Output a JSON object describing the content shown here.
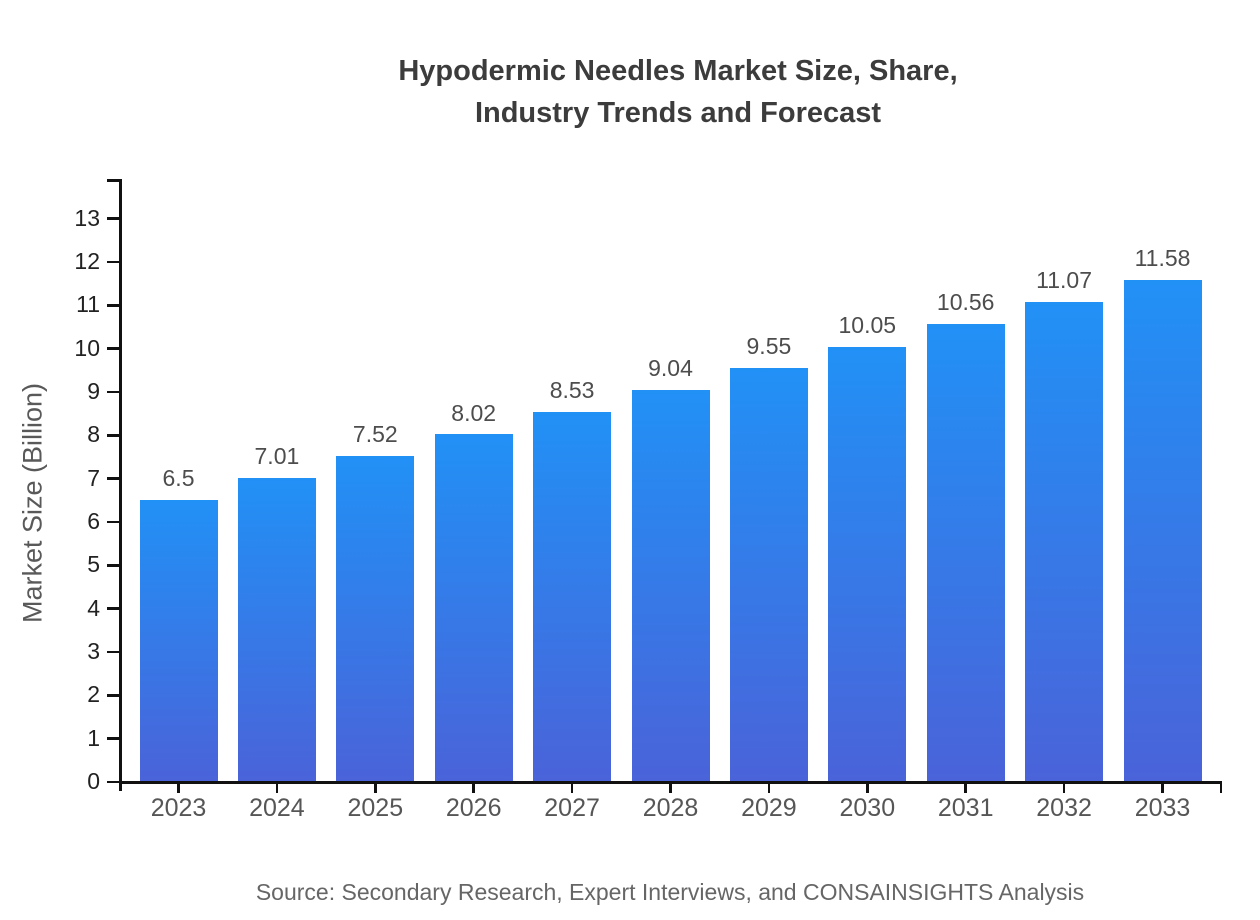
{
  "title": {
    "line1": "Hypodermic Needles Market Size, Share,",
    "line2": "Industry Trends and Forecast"
  },
  "source": "Source: Secondary Research, Expert Interviews, and CONSAINSIGHTS Analysis",
  "chart_data": {
    "type": "bar",
    "title": "Hypodermic Needles Market Size, Share, Industry Trends and Forecast",
    "categories": [
      "2023",
      "2024",
      "2025",
      "2026",
      "2027",
      "2028",
      "2029",
      "2030",
      "2031",
      "2032",
      "2033"
    ],
    "values": [
      6.5,
      7.01,
      7.52,
      8.02,
      8.53,
      9.04,
      9.55,
      10.05,
      10.56,
      11.07,
      11.58
    ],
    "value_labels": [
      "6.5",
      "7.01",
      "7.52",
      "8.02",
      "8.53",
      "9.04",
      "9.55",
      "10.05",
      "10.56",
      "11.07",
      "11.58"
    ],
    "xlabel": "",
    "ylabel": "Market Size (Billion)",
    "ylim": [
      0,
      13.9
    ],
    "yticks": [
      0,
      1,
      2,
      3,
      4,
      5,
      6,
      7,
      8,
      9,
      10,
      11,
      12,
      13
    ],
    "grid": false,
    "legend": "none",
    "bar_color_top": "#2191f6",
    "bar_color_bottom": "#4a63d9",
    "axis_color": "#111111"
  }
}
